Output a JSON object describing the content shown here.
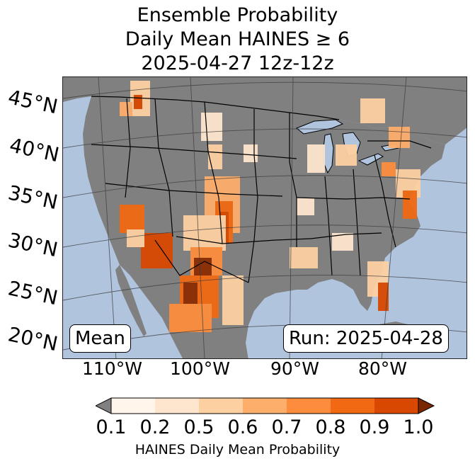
{
  "title": {
    "line1": "Ensemble Probability",
    "line2": "Daily Mean HAINES ≥ 6",
    "line3": "2025-04-27 12z-12z"
  },
  "map": {
    "ocean_color": "#b0c4de",
    "land_color": "#808080",
    "border_color": "#000000",
    "grid_color": "#3a3a3a",
    "lat_labels": [
      "45°N",
      "40°N",
      "35°N",
      "30°N",
      "25°N",
      "20°N"
    ],
    "lon_labels": [
      "110°W",
      "100°W",
      "90°W",
      "80°W"
    ]
  },
  "annotations": {
    "mean_label": "Mean",
    "run_label": "Run: 2025-04-28"
  },
  "colorbar": {
    "ticks": [
      "0.1",
      "0.2",
      "0.5",
      "0.6",
      "0.7",
      "0.8",
      "0.9",
      "1.0"
    ],
    "colors": [
      "#fff5eb",
      "#fee6ce",
      "#fdd0a2",
      "#fdae6b",
      "#fd8d3c",
      "#f16913",
      "#d94801",
      "#8c2d04"
    ],
    "under_color": "#808080",
    "label": "HAINES Daily Mean Probability"
  }
}
